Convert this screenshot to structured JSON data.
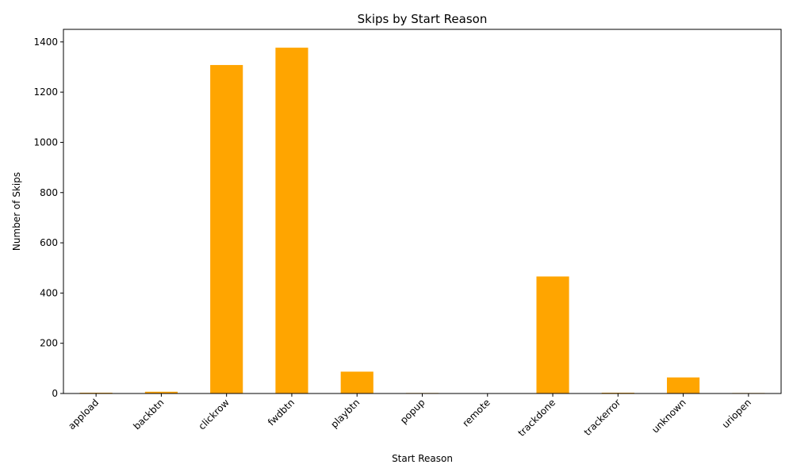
{
  "chart_data": {
    "type": "bar",
    "title": "Skips by Start Reason",
    "xlabel": "Start Reason",
    "ylabel": "Number of Skips",
    "categories": [
      "appload",
      "backbtn",
      "clickrow",
      "fwdbtn",
      "playbtn",
      "popup",
      "remote",
      "trackdone",
      "trackerror",
      "unknown",
      "uriopen"
    ],
    "values": [
      3,
      7,
      1308,
      1377,
      87,
      2,
      0,
      466,
      3,
      64,
      2
    ],
    "ylim": [
      0,
      1450
    ],
    "yticks": [
      0,
      200,
      400,
      600,
      800,
      1000,
      1200,
      1400
    ],
    "bar_color": "#FFA500",
    "grid": false,
    "legend": false
  }
}
